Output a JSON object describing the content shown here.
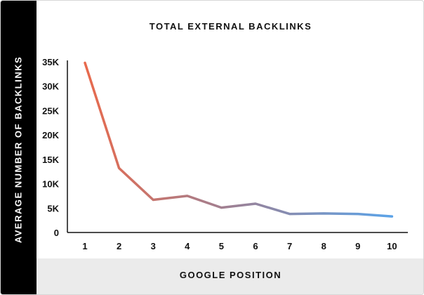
{
  "chart_data": {
    "type": "line",
    "title": "TOTAL EXTERNAL BACKLINKS",
    "xlabel": "GOOGLE POSITION",
    "ylabel": "AVERAGE NUMBER OF BACKLINKS",
    "x": [
      1,
      2,
      3,
      4,
      5,
      6,
      7,
      8,
      9,
      10
    ],
    "x_tick_labels": [
      "1",
      "2",
      "3",
      "4",
      "5",
      "6",
      "7",
      "8",
      "9",
      "10"
    ],
    "y_ticks": [
      0,
      5000,
      10000,
      15000,
      20000,
      25000,
      30000,
      35000
    ],
    "y_tick_labels": [
      "0",
      "5K",
      "10K",
      "15K",
      "20K",
      "25K",
      "30K",
      "35K"
    ],
    "ylim": [
      0,
      35000
    ],
    "series": [
      {
        "values": [
          34800,
          13200,
          6700,
          7500,
          5100,
          5900,
          3800,
          3900,
          3800,
          3300
        ]
      }
    ],
    "grid": false,
    "colors": {
      "line_start": "#e86a4d",
      "line_mid": "#9a8298",
      "line_end": "#5ba3e8",
      "axis": "#111111",
      "y_band": "#000000",
      "x_band": "#ebebeb"
    }
  }
}
